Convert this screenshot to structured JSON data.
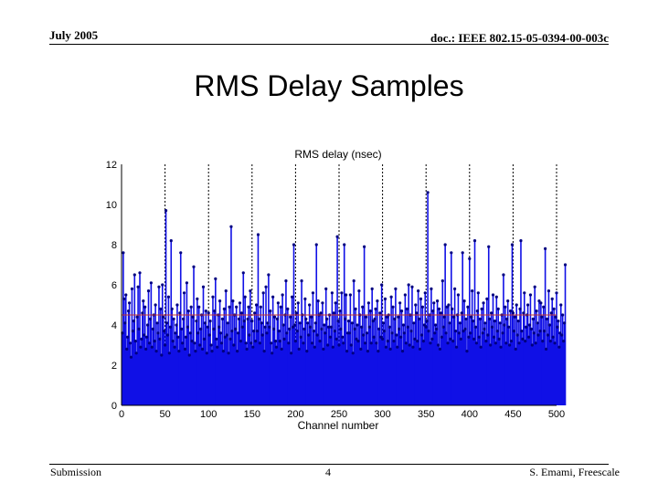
{
  "header": {
    "date": "July 2005",
    "doc_id": "doc.: IEEE 802.15-05-0394-00-003c"
  },
  "slide": {
    "title": "RMS Delay Samples"
  },
  "footer": {
    "left": "Submission",
    "page": "4",
    "right": "S. Emami, Freescale"
  },
  "colors": {
    "stem": "#1010e6",
    "marker": "#000080",
    "mean_line": "#c03030",
    "grid": "#000000"
  },
  "chart_data": {
    "type": "stem",
    "title": "RMS delay (nsec)",
    "xlabel": "Channel number",
    "ylabel": "",
    "xlim": [
      0,
      500
    ],
    "ylim": [
      0,
      12
    ],
    "xticks": [
      0,
      50,
      100,
      150,
      200,
      250,
      300,
      350,
      400,
      450,
      500
    ],
    "yticks": [
      0,
      2,
      4,
      6,
      8,
      10,
      12
    ],
    "dashed_vertical_lines_at": [
      50,
      100,
      150,
      200,
      250,
      300,
      350,
      400,
      450,
      500
    ],
    "mean_line": 4.5,
    "series": [
      {
        "x_start": 1,
        "x_step": 1,
        "values": [
          3.6,
          7.6,
          5.3,
          4.1,
          5.5,
          2.8,
          3.4,
          4.7,
          5.1,
          3.1,
          2.4,
          5.8,
          3.7,
          4.2,
          6.5,
          3.2,
          2.6,
          4.4,
          5.9,
          3.8,
          6.6,
          2.9,
          3.3,
          4.6,
          5.2,
          3.5,
          4.9,
          2.8,
          3.4,
          4.0,
          5.7,
          3.1,
          4.3,
          6.1,
          2.9,
          3.8,
          4.5,
          3.2,
          5.0,
          2.7,
          4.1,
          3.6,
          5.9,
          3.3,
          4.8,
          2.5,
          6.0,
          4.4,
          3.7,
          3.0,
          9.7,
          4.1,
          3.5,
          5.4,
          2.6,
          3.9,
          8.2,
          4.8,
          3.2,
          4.3,
          2.9,
          3.6,
          4.0,
          5.0,
          3.4,
          2.7,
          4.6,
          7.6,
          3.8,
          3.1,
          4.3,
          5.6,
          2.8,
          3.4,
          6.1,
          3.9,
          4.7,
          2.5,
          3.6,
          4.9,
          3.2,
          4.4,
          6.9,
          3.1,
          2.7,
          4.2,
          5.3,
          3.6,
          4.9,
          3.0,
          3.8,
          4.5,
          2.8,
          5.9,
          3.3,
          4.1,
          4.7,
          2.6,
          3.9,
          4.6,
          3.5,
          4.2,
          3.0,
          2.7,
          5.4,
          3.8,
          4.7,
          6.3,
          3.3,
          2.9,
          4.5,
          3.9,
          5.2,
          3.6,
          3.1,
          4.3,
          2.7,
          4.8,
          3.4,
          5.7,
          3.5,
          4.1,
          2.6,
          4.9,
          3.3,
          8.9,
          3.7,
          5.2,
          3.0,
          4.5,
          3.8,
          4.9,
          2.7,
          3.6,
          4.3,
          5.1,
          3.2,
          4.6,
          3.9,
          6.6,
          4.2,
          5.4,
          3.1,
          2.8,
          4.3,
          4.9,
          3.5,
          5.7,
          3.1,
          4.2,
          2.9,
          3.7,
          4.6,
          3.2,
          5.0,
          3.7,
          8.5,
          4.3,
          3.1,
          4.9,
          4.1,
          3.5,
          5.6,
          2.7,
          3.9,
          5.9,
          3.6,
          4.1,
          6.5,
          3.9,
          4.7,
          3.1,
          2.6,
          5.4,
          3.8,
          4.4,
          3.2,
          2.9,
          4.3,
          5.1,
          3.7,
          3.2,
          4.9,
          2.8,
          5.5,
          4.0,
          3.3,
          4.5,
          6.2,
          3.6,
          4.8,
          3.1,
          3.8,
          4.4,
          2.6,
          5.4,
          3.9,
          8.0,
          4.0,
          3.2,
          4.6,
          3.7,
          5.1,
          2.8,
          4.1,
          3.4,
          6.2,
          4.5,
          3.1,
          3.8,
          5.3,
          4.3,
          2.7,
          4.1,
          3.5,
          5.0,
          3.9,
          4.4,
          3.1,
          5.6,
          3.7,
          2.9,
          4.1,
          8.0,
          3.5,
          5.2,
          4.5,
          3.2,
          4.6,
          3.8,
          5.1,
          2.8,
          4.0,
          3.6,
          5.8,
          4.3,
          3.0,
          3.9,
          4.5,
          3.4,
          3.9,
          5.6,
          2.9,
          4.6,
          3.7,
          5.1,
          3.3,
          8.4,
          4.2,
          3.0,
          4.7,
          3.8,
          5.6,
          3.4,
          3.1,
          8.0,
          4.3,
          5.5,
          2.7,
          3.6,
          4.2,
          3.6,
          5.5,
          3.0,
          4.1,
          2.6,
          6.2,
          3.8,
          4.8,
          3.3,
          4.0,
          3.2,
          5.7,
          4.5,
          2.8,
          3.9,
          4.9,
          3.5,
          7.9,
          3.1,
          4.4,
          3.6,
          2.7,
          5.1,
          3.9,
          4.7,
          3.1,
          5.8,
          4.2,
          3.4,
          4.3,
          4.8,
          3.1,
          5.2,
          2.7,
          3.8,
          4.6,
          3.4,
          6.0,
          3.3,
          4.1,
          3.7,
          5.3,
          2.9,
          4.4,
          3.2,
          4.5,
          3.9,
          2.8,
          5.4,
          3.6,
          4.9,
          3.2,
          4.3,
          5.8,
          3.5,
          2.9,
          4.4,
          3.8,
          5.1,
          3.4,
          4.7,
          2.7,
          4.0,
          3.6,
          5.5,
          3.1,
          4.8,
          3.9,
          6.0,
          3.0,
          4.5,
          3.7,
          5.9,
          2.9,
          4.1,
          3.3,
          5.0,
          4.6,
          3.2,
          5.7,
          4.3,
          2.8,
          5.3,
          3.5,
          4.9,
          3.2,
          4.0,
          5.6,
          3.9,
          4.2,
          10.6,
          3.7,
          4.5,
          3.1,
          5.8,
          3.3,
          4.7,
          5.1,
          3.6,
          4.0,
          3.8,
          5.2,
          3.0,
          4.8,
          2.8,
          4.6,
          3.4,
          6.2,
          3.9,
          4.4,
          8.0,
          3.6,
          4.9,
          3.1,
          5.0,
          4.1,
          3.3,
          7.6,
          4.8,
          3.2,
          4.4,
          5.8,
          3.7,
          2.9,
          4.5,
          5.5,
          3.6,
          4.1,
          3.3,
          4.6,
          7.6,
          3.7,
          5.2,
          3.8,
          4.3,
          2.7,
          4.9,
          3.4,
          7.3,
          3.6,
          4.4,
          5.7,
          4.2,
          3.3,
          8.2,
          3.9,
          3.1,
          4.7,
          5.6,
          3.4,
          4.3,
          2.9,
          4.8,
          3.6,
          5.1,
          3.8,
          4.1,
          3.2,
          5.3,
          3.5,
          7.9,
          4.3,
          3.0,
          4.6,
          3.9,
          5.5,
          3.4,
          4.2,
          3.1,
          5.4,
          3.7,
          4.8,
          3.3,
          4.1,
          2.9,
          4.5,
          3.6,
          6.5,
          4.0,
          4.9,
          3.1,
          4.3,
          5.2,
          3.9,
          3.0,
          4.7,
          3.2,
          8.0,
          4.6,
          3.7,
          4.4,
          2.8,
          5.0,
          3.5,
          4.2,
          3.1,
          4.8,
          8.2,
          3.7,
          3.3,
          4.6,
          5.6,
          3.2,
          3.9,
          4.5,
          5.0,
          3.4,
          4.0,
          5.5,
          3.8,
          3.0,
          4.3,
          3.6,
          5.9,
          3.1,
          4.7,
          4.1,
          3.5,
          5.2,
          3.7,
          5.1,
          4.4,
          3.2,
          4.9,
          3.7,
          7.8,
          2.8,
          4.3,
          3.5,
          5.7,
          4.0,
          3.2,
          4.6,
          5.3,
          3.4,
          4.8,
          3.1,
          4.4,
          5.6,
          3.9,
          4.2,
          2.9,
          3.6,
          5.0,
          3.5,
          4.5,
          3.2,
          4.1,
          7.0
        ]
      }
    ]
  }
}
